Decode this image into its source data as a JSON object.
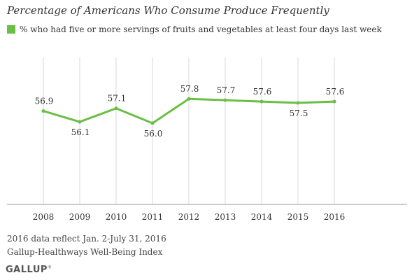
{
  "chart_data": {
    "type": "line",
    "title": "Percentage of Americans Who Consume Produce Frequently",
    "xlabel": "",
    "ylabel": "",
    "categories": [
      "2008",
      "2009",
      "2010",
      "2011",
      "2012",
      "2013",
      "2014",
      "2015",
      "2016"
    ],
    "series": [
      {
        "name": "% who had five or more servings of fruits and vegetables at least four days last week",
        "values": [
          56.9,
          56.1,
          57.1,
          56.0,
          57.8,
          57.7,
          57.6,
          57.5,
          57.6
        ],
        "labels": [
          "56.9",
          "56.1",
          "57.1",
          "56.0",
          "57.8",
          "57.7",
          "57.6",
          "57.5",
          "57.6"
        ],
        "label_positions": [
          "above",
          "below",
          "above",
          "below",
          "above",
          "above",
          "above",
          "below",
          "above"
        ],
        "color": "#6abf45"
      }
    ],
    "ylim": [
      50,
      62
    ],
    "grid": "vertical",
    "legend": "top-left"
  },
  "notes": [
    "2016 data reflect Jan. 2-July 31, 2016",
    "Gallup-Healthways Well-Being Index"
  ],
  "brand": {
    "name": "GALLUP",
    "mark": "®"
  },
  "colors": {
    "series": "#6abf45",
    "grid": "#d9d9d9",
    "axis": "#999999",
    "text": "#333333"
  }
}
